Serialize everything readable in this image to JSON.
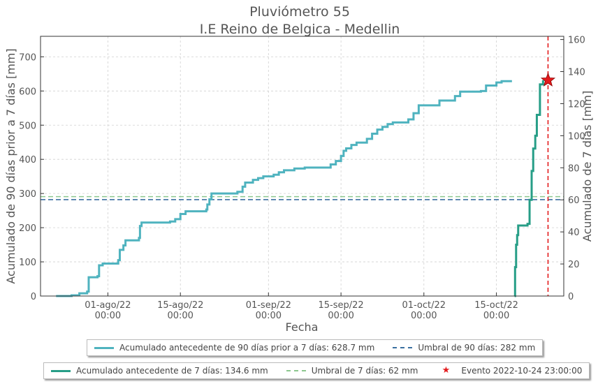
{
  "chart_data": {
    "type": "line",
    "title": "Pluviómetro 55",
    "subtitle": "I.E Reino de Belgica - Medellin",
    "xlabel": "Fecha",
    "ylabel_left": "Acumulado de 90 días prior a 7 días [mm]",
    "ylabel_right": "Acumulado de 7 días [mm]",
    "xlim": [
      "2022-07-19",
      "2022-10-28"
    ],
    "ylim_left": [
      0,
      760
    ],
    "ylim_right": [
      0,
      162
    ],
    "yticks_left": [
      0,
      100,
      200,
      300,
      400,
      500,
      600,
      700
    ],
    "yticks_right": [
      0,
      20,
      40,
      60,
      80,
      100,
      120,
      140,
      160
    ],
    "xticks": [
      {
        "date": "2022-08-01",
        "label1": "01-ago/22",
        "label2": "00:00"
      },
      {
        "date": "2022-08-15",
        "label1": "15-ago/22",
        "label2": "00:00"
      },
      {
        "date": "2022-09-01",
        "label1": "01-sep/22",
        "label2": "00:00"
      },
      {
        "date": "2022-09-15",
        "label1": "15-sep/22",
        "label2": "00:00"
      },
      {
        "date": "2022-10-01",
        "label1": "01-oct/22",
        "label2": "00:00"
      },
      {
        "date": "2022-10-15",
        "label1": "15-oct/22",
        "label2": "00:00"
      }
    ],
    "grid": true,
    "series": [
      {
        "name": "Acumulado antecedente de 90 días prior a 7 días: 628.7 mm",
        "axis": "left",
        "style": "step",
        "color": "#4fb3bf",
        "points": [
          [
            "2022-07-22",
            0
          ],
          [
            "2022-07-25",
            2
          ],
          [
            "2022-07-26.5",
            8
          ],
          [
            "2022-07-28",
            13
          ],
          [
            "2022-07-28.3",
            55
          ],
          [
            "2022-07-30",
            58
          ],
          [
            "2022-07-30.3",
            90
          ],
          [
            "2022-07-31",
            95
          ],
          [
            "2022-08-03",
            105
          ],
          [
            "2022-08-03.3",
            135
          ],
          [
            "2022-08-04",
            148
          ],
          [
            "2022-08-04.4",
            163
          ],
          [
            "2022-08-07",
            170
          ],
          [
            "2022-08-07.2",
            205
          ],
          [
            "2022-08-07.5",
            215
          ],
          [
            "2022-08-13",
            218
          ],
          [
            "2022-08-14",
            225
          ],
          [
            "2022-08-15",
            240
          ],
          [
            "2022-08-16",
            248
          ],
          [
            "2022-08-20",
            253
          ],
          [
            "2022-08-20.2",
            268
          ],
          [
            "2022-08-20.6",
            283
          ],
          [
            "2022-08-21",
            300
          ],
          [
            "2022-08-26",
            305
          ],
          [
            "2022-08-27",
            320
          ],
          [
            "2022-08-27.5",
            332
          ],
          [
            "2022-08-29",
            340
          ],
          [
            "2022-08-30",
            345
          ],
          [
            "2022-08-31",
            350
          ],
          [
            "2022-09-02",
            355
          ],
          [
            "2022-09-03",
            362
          ],
          [
            "2022-09-04",
            368
          ],
          [
            "2022-09-06",
            373
          ],
          [
            "2022-09-08",
            376
          ],
          [
            "2022-09-13",
            385
          ],
          [
            "2022-09-14",
            395
          ],
          [
            "2022-09-15",
            410
          ],
          [
            "2022-09-15.5",
            425
          ],
          [
            "2022-09-16",
            432
          ],
          [
            "2022-09-17",
            442
          ],
          [
            "2022-09-18",
            449
          ],
          [
            "2022-09-20",
            460
          ],
          [
            "2022-09-21",
            475
          ],
          [
            "2022-09-22",
            487
          ],
          [
            "2022-09-23",
            495
          ],
          [
            "2022-09-24",
            503
          ],
          [
            "2022-09-25",
            508
          ],
          [
            "2022-09-28",
            517
          ],
          [
            "2022-09-29",
            535
          ],
          [
            "2022-09-30",
            558
          ],
          [
            "2022-10-04",
            572
          ],
          [
            "2022-10-07",
            585
          ],
          [
            "2022-10-08",
            598
          ],
          [
            "2022-10-12",
            600
          ],
          [
            "2022-10-13",
            616
          ],
          [
            "2022-10-15",
            625
          ],
          [
            "2022-10-16",
            628.7
          ],
          [
            "2022-10-18",
            628.7
          ]
        ]
      },
      {
        "name": "Acumulado antecedente de 7 días: 134.6 mm",
        "axis": "right",
        "style": "step",
        "color": "#279e87",
        "points": [
          [
            "2022-10-18.5",
            0
          ],
          [
            "2022-10-18.6",
            18
          ],
          [
            "2022-10-18.8",
            32
          ],
          [
            "2022-10-19",
            38
          ],
          [
            "2022-10-19.2",
            44
          ],
          [
            "2022-10-21",
            45
          ],
          [
            "2022-10-21.4",
            60
          ],
          [
            "2022-10-21.8",
            78
          ],
          [
            "2022-10-22.1",
            92
          ],
          [
            "2022-10-22.5",
            100
          ],
          [
            "2022-10-22.8",
            113
          ],
          [
            "2022-10-23.4",
            132
          ],
          [
            "2022-10-24.0",
            134.6
          ]
        ]
      }
    ],
    "thresholds": [
      {
        "name": "Umbral de 90 días: 282 mm",
        "axis": "left",
        "value": 282,
        "color": "#3a6fa0"
      },
      {
        "name": "Umbral de 7 días: 62 mm",
        "axis": "right",
        "value": 62,
        "color": "#8cc78e"
      }
    ],
    "event": {
      "name": "Evento 2022-10-24 23:00:00",
      "date": "2022-10-24.96",
      "value_right": 134.6,
      "color": "#e31a1c"
    },
    "legend_top": [
      {
        "label": "Acumulado antecedente de 90 días prior a 7 días: 628.7 mm",
        "kind": "solid",
        "color": "#4fb3bf"
      },
      {
        "label": "Umbral de 90 días: 282 mm",
        "kind": "dash",
        "color": "#3a6fa0"
      }
    ],
    "legend_bottom": [
      {
        "label": "Acumulado antecedente de 7 días: 134.6 mm",
        "kind": "solid",
        "color": "#279e87"
      },
      {
        "label": "Umbral de 7 días: 62 mm",
        "kind": "dash",
        "color": "#8cc78e"
      },
      {
        "label": "Evento 2022-10-24 23:00:00",
        "kind": "star",
        "color": "#e31a1c"
      }
    ]
  }
}
